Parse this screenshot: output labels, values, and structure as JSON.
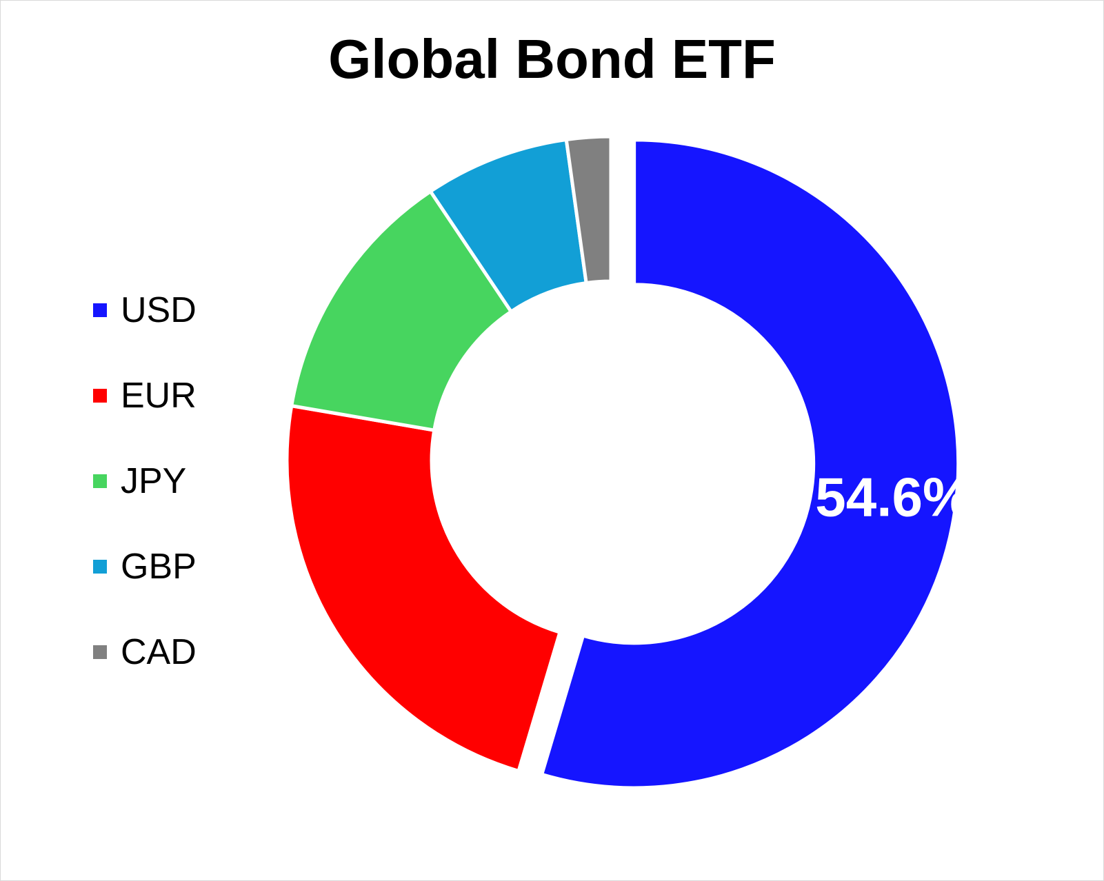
{
  "chart_data": {
    "type": "pie",
    "style": "donut",
    "title": "Global Bond ETF",
    "legend_position": "left",
    "slices": [
      {
        "label": "USD",
        "value": 54.6,
        "color": "#1515ff",
        "data_label": "54.6%",
        "exploded": true
      },
      {
        "label": "EUR",
        "value": 23.1,
        "color": "#ff0000",
        "data_label": ""
      },
      {
        "label": "JPY",
        "value": 12.9,
        "color": "#47d55f",
        "data_label": ""
      },
      {
        "label": "GBP",
        "value": 7.2,
        "color": "#129fd6",
        "data_label": ""
      },
      {
        "label": "CAD",
        "value": 2.2,
        "color": "#808080",
        "data_label": ""
      }
    ]
  }
}
